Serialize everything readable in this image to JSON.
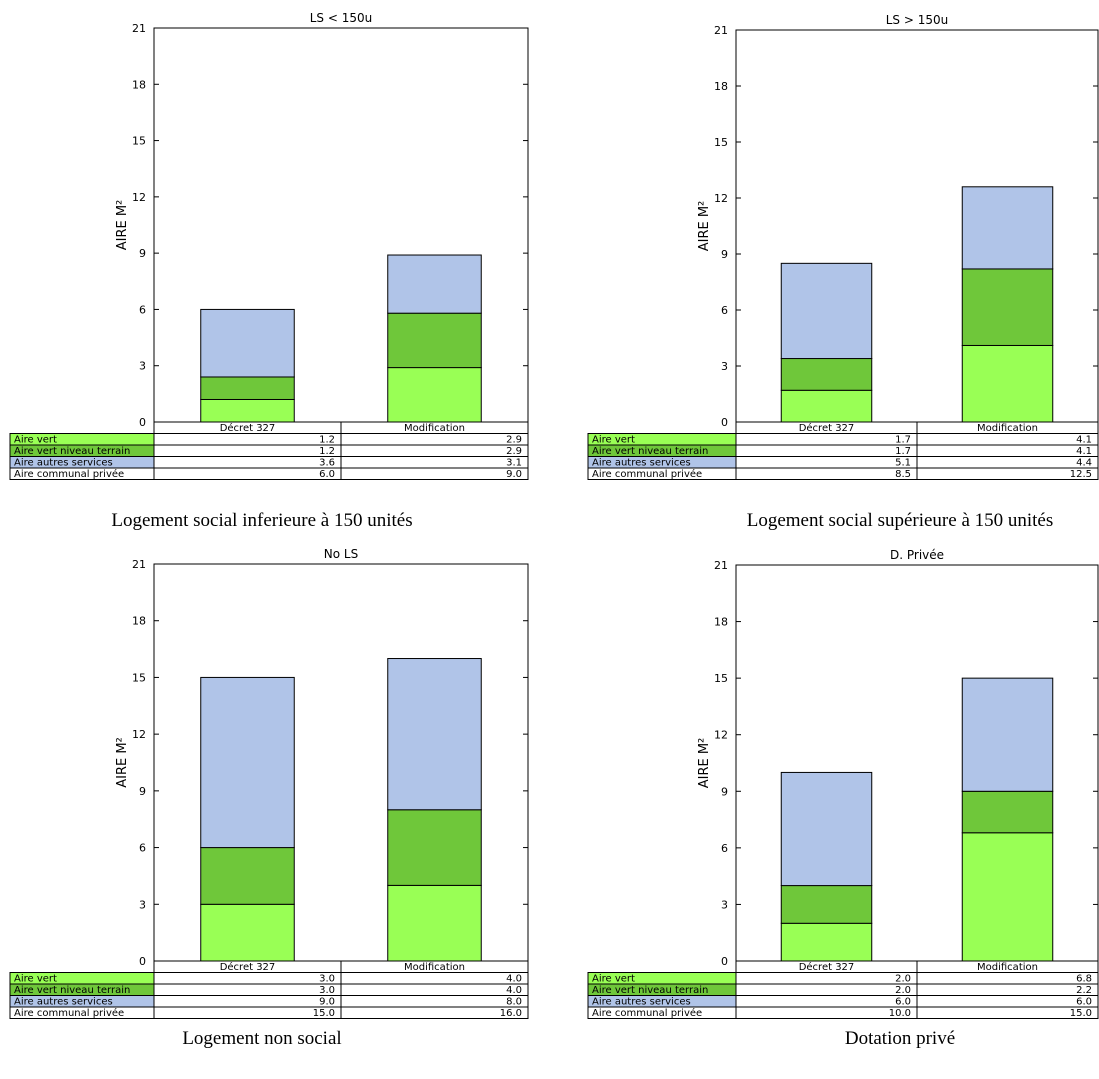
{
  "chart_data": [
    {
      "type": "bar",
      "title": "LS < 150u",
      "ylabel": "AIRE M²",
      "ylim": [
        0,
        21
      ],
      "yticks": [
        0,
        3,
        6,
        9,
        12,
        15,
        18,
        21
      ],
      "categories": [
        "Décret 327",
        "Modification"
      ],
      "series": [
        {
          "name": "Aire vert",
          "values": [
            1.2,
            2.9
          ],
          "color": "#99ff55"
        },
        {
          "name": "Aire vert niveau terrain",
          "values": [
            1.2,
            2.9
          ],
          "color": "#6fc73a"
        },
        {
          "name": "Aire autres services",
          "values": [
            3.6,
            3.1
          ],
          "color": "#b0c4e8"
        }
      ],
      "total_row": {
        "name": "Aire communal privée",
        "values": [
          6.0,
          9.0
        ]
      },
      "table_display": [
        [
          "1.2",
          "2.9"
        ],
        [
          "1.2",
          "2.9"
        ],
        [
          "3.6",
          "3.1"
        ],
        [
          "6.0",
          "9.0"
        ]
      ],
      "caption": "Logement social inferieure à 150 unités"
    },
    {
      "type": "bar",
      "title": "LS > 150u",
      "ylabel": "AIRE M²",
      "ylim": [
        0,
        21
      ],
      "yticks": [
        0,
        3,
        6,
        9,
        12,
        15,
        18,
        21
      ],
      "categories": [
        "Décret 327",
        "Modification"
      ],
      "series": [
        {
          "name": "Aire vert",
          "values": [
            1.7,
            4.1
          ],
          "color": "#99ff55"
        },
        {
          "name": "Aire vert niveau terrain",
          "values": [
            1.7,
            4.1
          ],
          "color": "#6fc73a"
        },
        {
          "name": "Aire autres services",
          "values": [
            5.1,
            4.4
          ],
          "color": "#b0c4e8"
        }
      ],
      "total_row": {
        "name": "Aire communal privée",
        "values": [
          8.5,
          12.5
        ]
      },
      "table_display": [
        [
          "1.7",
          "4.1"
        ],
        [
          "1.7",
          "4.1"
        ],
        [
          "5.1",
          "4.4"
        ],
        [
          "8.5",
          "12.5"
        ]
      ],
      "caption": "Logement social supérieure à 150 unités"
    },
    {
      "type": "bar",
      "title": "No LS",
      "ylabel": "AIRE M²",
      "ylim": [
        0,
        21
      ],
      "yticks": [
        0,
        3,
        6,
        9,
        12,
        15,
        18,
        21
      ],
      "categories": [
        "Décret 327",
        "Modification"
      ],
      "series": [
        {
          "name": "Aire vert",
          "values": [
            3.0,
            4.0
          ],
          "color": "#99ff55"
        },
        {
          "name": "Aire vert niveau terrain",
          "values": [
            3.0,
            4.0
          ],
          "color": "#6fc73a"
        },
        {
          "name": "Aire autres services",
          "values": [
            9.0,
            8.0
          ],
          "color": "#b0c4e8"
        }
      ],
      "total_row": {
        "name": "Aire communal privée",
        "values": [
          15.0,
          16.0
        ]
      },
      "table_display": [
        [
          "3.0",
          "4.0"
        ],
        [
          "3.0",
          "4.0"
        ],
        [
          "9.0",
          "8.0"
        ],
        [
          "15.0",
          "16.0"
        ]
      ],
      "caption": "Logement non social"
    },
    {
      "type": "bar",
      "title": "D. Privée",
      "ylabel": "AIRE M²",
      "ylim": [
        0,
        21
      ],
      "yticks": [
        0,
        3,
        6,
        9,
        12,
        15,
        18,
        21
      ],
      "categories": [
        "Décret 327",
        "Modification"
      ],
      "series": [
        {
          "name": "Aire vert",
          "values": [
            2.0,
            6.8
          ],
          "color": "#99ff55"
        },
        {
          "name": "Aire vert niveau terrain",
          "values": [
            2.0,
            2.2
          ],
          "color": "#6fc73a"
        },
        {
          "name": "Aire autres services",
          "values": [
            6.0,
            6.0
          ],
          "color": "#b0c4e8"
        }
      ],
      "total_row": {
        "name": "Aire communal privée",
        "values": [
          10.0,
          15.0
        ]
      },
      "table_display": [
        [
          "2.0",
          "6.8"
        ],
        [
          "2.0",
          "2.2"
        ],
        [
          "6.0",
          "6.0"
        ],
        [
          "10.0",
          "15.0"
        ]
      ],
      "caption": "Dotation privé"
    }
  ]
}
